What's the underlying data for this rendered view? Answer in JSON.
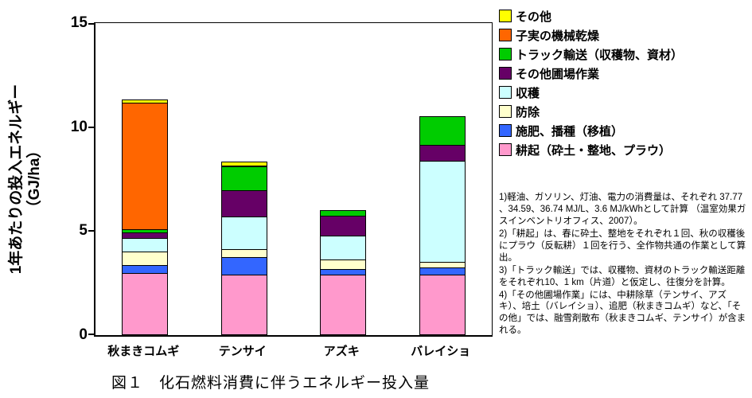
{
  "y_axis": {
    "title": "1年あたりの投入エネルギー",
    "unit": "（GJ/ha）",
    "ticks": [
      0,
      5,
      10,
      15
    ]
  },
  "chart_data": {
    "type": "bar",
    "stacked": true,
    "title": "図１　化石燃料消費に伴うエネルギー投入量",
    "categories": [
      "秋まきコムギ",
      "テンサイ",
      "アズキ",
      "バレイショ"
    ],
    "series": [
      {
        "name": "耕起（砕土・整地、プラウ）",
        "color": "#FF99CC",
        "values": [
          3.0,
          2.9,
          2.9,
          2.9
        ]
      },
      {
        "name": "施肥、播種（移植）",
        "color": "#3366FF",
        "values": [
          0.4,
          0.9,
          0.3,
          0.4
        ]
      },
      {
        "name": "防除",
        "color": "#FFFFCC",
        "values": [
          0.7,
          0.4,
          0.5,
          0.3
        ]
      },
      {
        "name": "収穫",
        "color": "#CCFFFF",
        "values": [
          0.7,
          1.6,
          1.2,
          4.9
        ]
      },
      {
        "name": "その他圃場作業",
        "color": "#660066",
        "values": [
          0.3,
          1.3,
          1.0,
          0.8
        ]
      },
      {
        "name": "トラック輸送（収穫物、資材）",
        "color": "#00CC00",
        "values": [
          0.2,
          1.2,
          0.3,
          1.4
        ]
      },
      {
        "name": "子実の機械乾燥",
        "color": "#FF6600",
        "values": [
          6.1,
          0.1,
          0,
          0
        ]
      },
      {
        "name": "その他",
        "color": "#FFFF00",
        "values": [
          0.2,
          0.2,
          0,
          0
        ]
      }
    ],
    "ylim": [
      0,
      15
    ],
    "ylabel": "1年あたりの投入エネルギー（GJ/ha）",
    "legend_position": "top-right",
    "grid": false
  },
  "notes": [
    "1)軽油、ガソリン、灯油、電力の消費量は、それぞれ 37.77 、34.59、36.74 MJ/L、3.6 MJ/kWhとして計算 （温室効果ガスインベントリオフィス、2007）。",
    "2)「耕起」は、春に砕土、整地をそれぞれ１回、秋の収穫後にプラウ（反転耕）１回を行う、全作物共通の作業として算出。",
    "3)「トラック輸送」では、収穫物、資材のトラック輸送距離をそれぞれ10、1 km（片道）と仮定し、往復分を計算。",
    "4)「その他圃場作業」には、中耕除草（テンサイ、アズキ）、培土（バレイショ）、追肥（秋まきコムギ）など、「その他」では、融雪剤散布（秋まきコムギ、テンサイ）が含まれる。"
  ],
  "caption": "図１　化石燃料消費に伴うエネルギー投入量"
}
